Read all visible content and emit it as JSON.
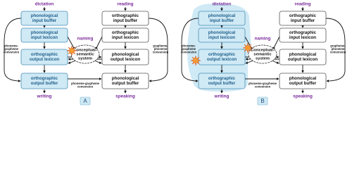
{
  "panels": [
    {
      "label": "A",
      "top_left": "dictation",
      "top_right": "reading",
      "naming": "naming",
      "bottom_left": "writing",
      "bottom_right": "speaking",
      "left_boxes": [
        [
          "phonological",
          "input buffer"
        ],
        [
          "phonological",
          "input lexicon"
        ],
        [
          "orthographic",
          "output lexicon"
        ],
        [
          "orthographic",
          "output buffer"
        ]
      ],
      "right_boxes": [
        [
          "orthographic",
          "input buffer"
        ],
        [
          "orthographic",
          "input lexicon"
        ],
        [
          "phonological",
          "output lexicon"
        ],
        [
          "phonological",
          "output buffer"
        ]
      ],
      "center": [
        "Conceptual-",
        "semantic",
        "system"
      ],
      "left_route": [
        "phoneme-",
        "grapheme",
        "conversion"
      ],
      "right_route": [
        "grapheme-",
        "phoneme",
        "conversion"
      ],
      "bottom_route": [
        "phoneme-grapheme",
        "conversion"
      ]
    },
    {
      "label": "B",
      "top_left": "dictation",
      "top_right": "reading",
      "naming": "naming",
      "bottom_left": "writing",
      "bottom_right": "speaking",
      "left_boxes": [
        [
          "phonological",
          "input buffer"
        ],
        [
          "phonological",
          "input lexicon"
        ],
        [
          "orthographic",
          "output lexicon"
        ],
        [
          "orthographic",
          "output buffer"
        ]
      ],
      "right_boxes": [
        [
          "orthographic",
          "input buffer"
        ],
        [
          "orthographic",
          "input lexicon"
        ],
        [
          "phonological",
          "output lexicon"
        ],
        [
          "phonological",
          "output buffer"
        ]
      ],
      "center": [
        "Conceptual-",
        "semantic",
        "system"
      ],
      "left_route": [
        "phoneme-",
        "grapheme",
        "conversion"
      ],
      "right_route": [
        "grapheme-",
        "phoneme",
        "conversion"
      ],
      "bottom_route": [
        "phoneme-grapheme",
        "conversion"
      ]
    }
  ]
}
